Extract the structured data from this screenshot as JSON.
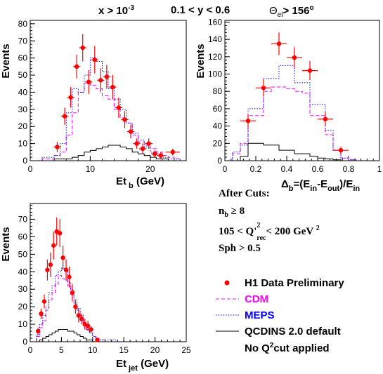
{
  "header": {
    "x_cut": "x > 10",
    "x_cut_exp": "-3",
    "y_cut": "0.1 < y < 0.6",
    "theta_cut": "Θ",
    "theta_sub": "el",
    "theta_val": "> 156",
    "theta_unit": "o"
  },
  "cuts": {
    "title": "After Cuts:",
    "nb_main": "n",
    "nb_sub": "b",
    "nb_rest": " ≥ 8",
    "q2_pre": "105  <  Q'",
    "q2_sup": "2",
    "q2_sub": "rec",
    "q2_post": "< 200 GeV",
    "q2_unit_sup": "2",
    "sph": "Sph   > 0.5"
  },
  "legend": {
    "data_label": "H1 Data Preliminary",
    "cdm_label": "CDM",
    "meps_label": "MEPS",
    "qcdins_label": "QCDINS 2.0 default",
    "noq2_pre": "No Q",
    "noq2_sup": "2",
    "noq2_post": "cut applied"
  },
  "colors": {
    "data": "#ff0000",
    "cdm": "#ff00ff",
    "meps": "#0000ff",
    "qcdins": "#000000"
  },
  "chart_data": [
    {
      "type": "histogram",
      "id": "etb",
      "xlabel": "Et",
      "xlabel_sub": "b",
      "xlabel_unit": "(GeV)",
      "ylabel": "Events",
      "xlim": [
        0,
        26
      ],
      "ylim": [
        0,
        82
      ],
      "xticks": [
        0,
        10,
        20
      ],
      "yticks": [
        0,
        10,
        20,
        30,
        40,
        50,
        60,
        70,
        80
      ],
      "data": {
        "x": [
          4.5,
          5.75,
          6.75,
          7.75,
          8.75,
          9.75,
          10.75,
          11.75,
          12.75,
          13.75,
          14.75,
          15.75,
          16.75,
          17.75,
          18.75,
          19.75,
          20.75,
          21.75,
          23.75
        ],
        "y": [
          8,
          26,
          37,
          55,
          66,
          46,
          59,
          47,
          49,
          43,
          31,
          24,
          17,
          10,
          7,
          10,
          4,
          3,
          5
        ],
        "err": [
          3,
          5,
          6,
          7,
          8,
          7,
          8,
          7,
          7,
          7,
          6,
          5,
          4,
          3,
          3,
          3,
          2,
          2,
          2
        ],
        "xerr": [
          0.6,
          0.6,
          0.6,
          0.6,
          0.6,
          0.6,
          0.6,
          0.6,
          0.6,
          0.6,
          0.6,
          0.6,
          0.6,
          0.6,
          0.6,
          0.6,
          0.6,
          0.6,
          1.2
        ]
      },
      "cdm": {
        "edges": [
          2,
          3,
          4,
          5,
          6,
          7,
          8,
          9,
          10,
          11,
          12,
          13,
          14,
          15,
          16,
          17,
          18,
          19,
          20,
          21,
          22,
          23,
          24,
          25
        ],
        "values": [
          1,
          1,
          3,
          5,
          15,
          28,
          40,
          45,
          44,
          42,
          38,
          36,
          30,
          25,
          22,
          15,
          11,
          9,
          7,
          5,
          3,
          2,
          1
        ]
      },
      "meps": {
        "edges": [
          2,
          3,
          4,
          5,
          6,
          7,
          8,
          9,
          10,
          11,
          12,
          13,
          14,
          15,
          16,
          17,
          18,
          19,
          20,
          21,
          22,
          23,
          24,
          25
        ],
        "values": [
          2,
          2,
          3,
          10,
          28,
          42,
          40,
          50,
          60,
          58,
          52,
          42,
          36,
          30,
          22,
          16,
          12,
          8,
          5,
          3,
          2,
          1,
          1
        ]
      },
      "qcdins": {
        "edges": [
          2,
          3,
          4,
          5,
          6,
          7,
          8,
          9,
          10,
          11,
          12,
          13,
          14,
          15,
          16,
          17,
          18,
          19,
          20,
          21,
          22,
          23,
          24,
          25
        ],
        "values": [
          0,
          0,
          1,
          1,
          1,
          2,
          3,
          5,
          6,
          7,
          8,
          9,
          9,
          8,
          7,
          5,
          4,
          3,
          2,
          1,
          1,
          0,
          0
        ]
      }
    },
    {
      "type": "histogram",
      "id": "deltab",
      "xlabel": "Δ",
      "xlabel_sub": "b",
      "xlabel_rest": "=(E",
      "xlabel_in1": "in",
      "xlabel_mid": "-E",
      "xlabel_out": "out",
      "xlabel_end": ")/E",
      "xlabel_in2": "in",
      "ylabel": "Events",
      "xlim": [
        0,
        1
      ],
      "ylim": [
        0,
        162
      ],
      "xticks": [
        0,
        0.2,
        0.4,
        0.6,
        0.8,
        1
      ],
      "yticks": [
        0,
        20,
        40,
        60,
        80,
        100,
        120,
        140,
        160
      ],
      "data": {
        "x": [
          0.15,
          0.25,
          0.35,
          0.45,
          0.55,
          0.65,
          0.75
        ],
        "y": [
          46,
          84,
          135,
          119,
          104,
          48,
          12
        ],
        "err": [
          8,
          10,
          13,
          12,
          11,
          8,
          4
        ],
        "xerr": [
          0.05,
          0.05,
          0.05,
          0.05,
          0.05,
          0.05,
          0.05
        ]
      },
      "cdm": {
        "edges": [
          0.05,
          0.1,
          0.15,
          0.2,
          0.25,
          0.3,
          0.35,
          0.4,
          0.45,
          0.5,
          0.55,
          0.6,
          0.65,
          0.7,
          0.75,
          0.8,
          0.85
        ],
        "values": [
          8,
          20,
          52,
          52,
          80,
          85,
          85,
          83,
          80,
          78,
          52,
          52,
          30,
          12,
          3,
          1
        ]
      },
      "meps": {
        "edges": [
          0.05,
          0.1,
          0.15,
          0.2,
          0.25,
          0.3,
          0.35,
          0.4,
          0.45,
          0.5,
          0.55,
          0.6,
          0.65,
          0.7,
          0.75,
          0.8,
          0.85
        ],
        "values": [
          10,
          18,
          60,
          60,
          95,
          95,
          110,
          110,
          90,
          90,
          65,
          65,
          35,
          12,
          3,
          1
        ]
      },
      "qcdins": {
        "edges": [
          0.05,
          0.1,
          0.15,
          0.2,
          0.25,
          0.3,
          0.35,
          0.4,
          0.45,
          0.5,
          0.55,
          0.6,
          0.65,
          0.7,
          0.75,
          0.8,
          0.85
        ],
        "values": [
          0,
          5,
          20,
          20,
          18,
          18,
          12,
          12,
          8,
          8,
          5,
          3,
          2,
          1,
          0,
          0
        ]
      }
    },
    {
      "type": "histogram",
      "id": "etjet",
      "xlabel": "Et",
      "xlabel_sub": "jet",
      "xlabel_unit": "(GeV)",
      "ylabel": "Events",
      "xlim": [
        0,
        25
      ],
      "ylim": [
        0,
        79
      ],
      "xticks": [
        0,
        5,
        10,
        15,
        20,
        25
      ],
      "yticks": [
        0,
        10,
        20,
        30,
        40,
        50,
        60,
        70
      ],
      "data": {
        "x": [
          1.25,
          1.75,
          2.25,
          2.75,
          3.25,
          3.75,
          4.25,
          4.75,
          5.25,
          5.75,
          6.25,
          6.75,
          7.25,
          7.75,
          8.25,
          8.75,
          9.25,
          9.75,
          10.75
        ],
        "y": [
          6,
          16,
          23,
          41,
          44,
          55,
          63,
          62,
          48,
          41,
          37,
          28,
          20,
          15,
          13,
          10,
          9,
          7,
          1
        ],
        "err": [
          2,
          3,
          4,
          6,
          7,
          8,
          8,
          8,
          7,
          6,
          6,
          5,
          4,
          4,
          3,
          3,
          3,
          2,
          1
        ],
        "xerr": [
          0.25,
          0.25,
          0.25,
          0.25,
          0.25,
          0.25,
          0.25,
          0.25,
          0.25,
          0.25,
          0.25,
          0.25,
          0.25,
          0.25,
          0.25,
          0.25,
          0.25,
          0.25,
          0.25
        ]
      },
      "cdm": {
        "edges": [
          1,
          1.5,
          2,
          2.5,
          3,
          3.5,
          4,
          4.5,
          5,
          5.5,
          6,
          6.5,
          7,
          7.5,
          8,
          8.5,
          9,
          9.5,
          10,
          10.5,
          11,
          12,
          13,
          14
        ],
        "values": [
          3,
          8,
          12,
          18,
          24,
          28,
          33,
          38,
          36,
          35,
          32,
          27,
          22,
          18,
          14,
          10,
          7,
          5,
          3,
          2,
          1,
          0,
          0
        ]
      },
      "meps": {
        "edges": [
          1,
          1.5,
          2,
          2.5,
          3,
          3.5,
          4,
          4.5,
          5,
          5.5,
          6,
          6.5,
          7,
          7.5,
          8,
          8.5,
          9,
          9.5,
          10,
          10.5,
          11,
          12,
          13,
          14
        ],
        "values": [
          4,
          10,
          15,
          20,
          28,
          32,
          38,
          40,
          42,
          40,
          34,
          30,
          24,
          19,
          15,
          10,
          7,
          5,
          3,
          2,
          1,
          1,
          1
        ]
      },
      "qcdins": {
        "edges": [
          1,
          1.5,
          2,
          2.5,
          3,
          3.5,
          4,
          4.5,
          5,
          5.5,
          6,
          6.5,
          7,
          7.5,
          8,
          8.5,
          9,
          9.5,
          10,
          10.5,
          11,
          12,
          13,
          14
        ],
        "values": [
          0,
          1,
          2,
          3,
          4,
          5,
          6,
          7,
          7,
          7,
          6,
          6,
          5,
          4,
          3,
          2,
          1,
          1,
          0,
          0,
          0,
          0,
          0
        ]
      }
    }
  ]
}
